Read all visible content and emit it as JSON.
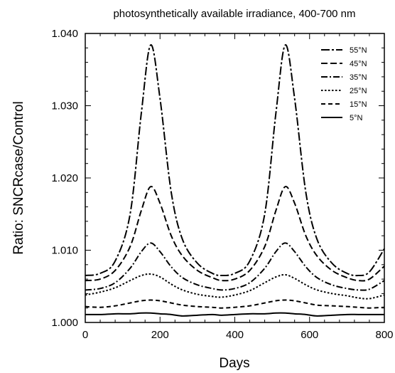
{
  "chart_data": {
    "type": "line",
    "title": "photosynthetically available irradiance, 400-700 nm",
    "xlabel": "Days",
    "ylabel": "Ratio: SNCRcase/Control",
    "xlim": [
      0,
      800
    ],
    "ylim": [
      1.0,
      1.04
    ],
    "x_ticks": [
      "0",
      "200",
      "400",
      "600",
      "800"
    ],
    "y_ticks": [
      "1.000",
      "1.010",
      "1.020",
      "1.030",
      "1.040"
    ],
    "grid": false,
    "legend_position": "top-right",
    "series": [
      {
        "name": "55°N",
        "style": "long-dash-short",
        "x": [
          0,
          40,
          80,
          120,
          150,
          175,
          200,
          230,
          260,
          300,
          340,
          365,
          400,
          440,
          480,
          510,
          535,
          560,
          590,
          620,
          660,
          700,
          730,
          760,
          800
        ],
        "values": [
          1.0065,
          1.0068,
          1.0085,
          1.015,
          1.029,
          1.0384,
          1.031,
          1.018,
          1.0115,
          1.0082,
          1.0068,
          1.0065,
          1.0068,
          1.0085,
          1.015,
          1.029,
          1.0384,
          1.031,
          1.018,
          1.0115,
          1.0082,
          1.0068,
          1.0065,
          1.007,
          1.0102
        ]
      },
      {
        "name": "45°N",
        "style": "dashed",
        "x": [
          0,
          40,
          80,
          120,
          150,
          175,
          200,
          230,
          260,
          300,
          340,
          365,
          400,
          440,
          480,
          510,
          535,
          560,
          590,
          620,
          660,
          700,
          730,
          760,
          800
        ],
        "values": [
          1.0058,
          1.006,
          1.0072,
          1.0105,
          1.0155,
          1.0188,
          1.0165,
          1.012,
          1.0092,
          1.0072,
          1.0062,
          1.0058,
          1.006,
          1.0072,
          1.0105,
          1.0155,
          1.0188,
          1.0165,
          1.012,
          1.0092,
          1.0072,
          1.0062,
          1.0058,
          1.006,
          1.0078
        ]
      },
      {
        "name": "35°N",
        "style": "dash-dot",
        "x": [
          0,
          40,
          80,
          120,
          150,
          175,
          200,
          230,
          260,
          300,
          340,
          365,
          400,
          440,
          480,
          510,
          535,
          560,
          590,
          620,
          660,
          700,
          730,
          760,
          800
        ],
        "values": [
          1.0045,
          1.0047,
          1.0055,
          1.0075,
          1.0098,
          1.011,
          1.0098,
          1.0077,
          1.0062,
          1.0052,
          1.0047,
          1.0045,
          1.0047,
          1.0055,
          1.0075,
          1.0098,
          1.011,
          1.0098,
          1.0077,
          1.0062,
          1.0052,
          1.0047,
          1.0045,
          1.0046,
          1.0058
        ]
      },
      {
        "name": "25°N",
        "style": "dotted",
        "x": [
          0,
          40,
          80,
          120,
          150,
          175,
          200,
          230,
          260,
          300,
          340,
          365,
          400,
          440,
          480,
          510,
          535,
          560,
          590,
          620,
          660,
          700,
          730,
          760,
          800
        ],
        "values": [
          1.0038,
          1.0042,
          1.0048,
          1.0058,
          1.0065,
          1.0067,
          1.0063,
          1.0053,
          1.0045,
          1.0039,
          1.0036,
          1.0035,
          1.0038,
          1.0044,
          1.0055,
          1.0063,
          1.0066,
          1.0061,
          1.0052,
          1.0045,
          1.004,
          1.0037,
          1.0034,
          1.0033,
          1.0038
        ]
      },
      {
        "name": "15°N",
        "style": "dashed-medium",
        "x": [
          0,
          40,
          80,
          120,
          150,
          175,
          200,
          230,
          260,
          300,
          340,
          365,
          400,
          440,
          480,
          510,
          535,
          560,
          590,
          620,
          660,
          700,
          730,
          760,
          800
        ],
        "values": [
          1.0022,
          1.0021,
          1.0023,
          1.0027,
          1.003,
          1.0031,
          1.003,
          1.0027,
          1.0024,
          1.0022,
          1.0021,
          1.002,
          1.0021,
          1.0023,
          1.0027,
          1.003,
          1.0031,
          1.003,
          1.0027,
          1.0024,
          1.0023,
          1.0022,
          1.0021,
          1.002,
          1.0021
        ]
      },
      {
        "name": "5°N",
        "style": "solid",
        "x": [
          0,
          40,
          80,
          120,
          150,
          175,
          200,
          230,
          260,
          300,
          340,
          365,
          400,
          440,
          480,
          510,
          535,
          560,
          590,
          620,
          660,
          700,
          730,
          760,
          800
        ],
        "values": [
          1.0011,
          1.0011,
          1.0012,
          1.0012,
          1.0013,
          1.0013,
          1.0012,
          1.0011,
          1.0009,
          1.001,
          1.0011,
          1.001,
          1.0011,
          1.0012,
          1.0012,
          1.0013,
          1.0013,
          1.0012,
          1.0011,
          1.0009,
          1.001,
          1.0011,
          1.0011,
          1.0011,
          1.0011
        ]
      }
    ]
  }
}
